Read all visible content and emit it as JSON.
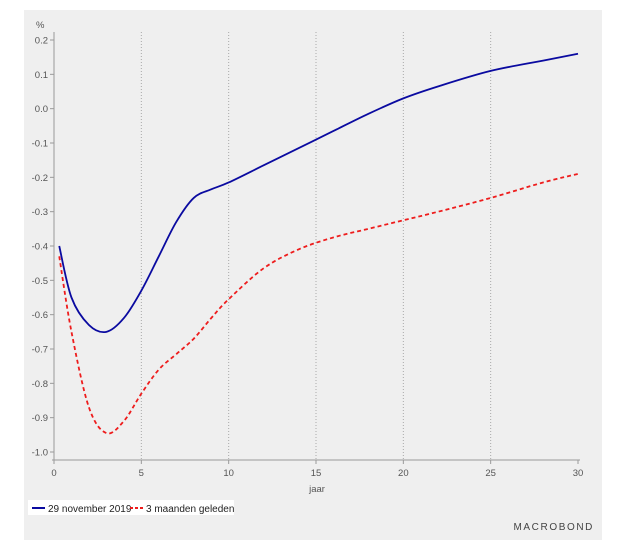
{
  "chart_data": {
    "type": "line",
    "ylabel": "%",
    "xlabel": "jaar",
    "xlim": [
      0,
      30
    ],
    "ylim": [
      -1.0,
      0.2
    ],
    "x_ticks": [
      "0",
      "5",
      "10",
      "15",
      "20",
      "25",
      "30"
    ],
    "y_ticks": [
      "0.2",
      "0.1",
      "0.0",
      "-0.1",
      "-0.2",
      "-0.3",
      "-0.4",
      "-0.5",
      "-0.6",
      "-0.7",
      "-0.8",
      "-0.9",
      "-1.0"
    ],
    "vertical_gridlines": [
      5,
      10,
      15,
      20,
      25
    ],
    "series": [
      {
        "name": "29 november 2019",
        "color": "#0a0aa0",
        "style": "solid",
        "x": [
          0.3,
          1,
          2,
          3,
          4,
          5,
          6,
          7,
          8,
          9,
          10,
          12,
          14,
          16,
          18,
          20,
          22,
          25,
          28,
          30
        ],
        "values": [
          -0.4,
          -0.55,
          -0.63,
          -0.65,
          -0.61,
          -0.53,
          -0.43,
          -0.33,
          -0.26,
          -0.235,
          -0.215,
          -0.165,
          -0.115,
          -0.065,
          -0.015,
          0.03,
          0.065,
          0.11,
          0.14,
          0.16
        ]
      },
      {
        "name": "3 maanden geleden",
        "color": "#ee1c1c",
        "style": "dashed",
        "x": [
          0.3,
          1,
          2,
          3,
          4,
          5,
          6,
          7,
          8,
          9,
          10,
          12,
          14,
          16,
          18,
          20,
          22,
          25,
          28,
          30
        ],
        "values": [
          -0.43,
          -0.65,
          -0.87,
          -0.945,
          -0.91,
          -0.83,
          -0.76,
          -0.715,
          -0.67,
          -0.61,
          -0.555,
          -0.465,
          -0.41,
          -0.375,
          -0.35,
          -0.325,
          -0.3,
          -0.26,
          -0.215,
          -0.19
        ]
      }
    ],
    "legend_position": "bottom-left"
  },
  "branding": {
    "logo_text": "MACROBOND"
  }
}
